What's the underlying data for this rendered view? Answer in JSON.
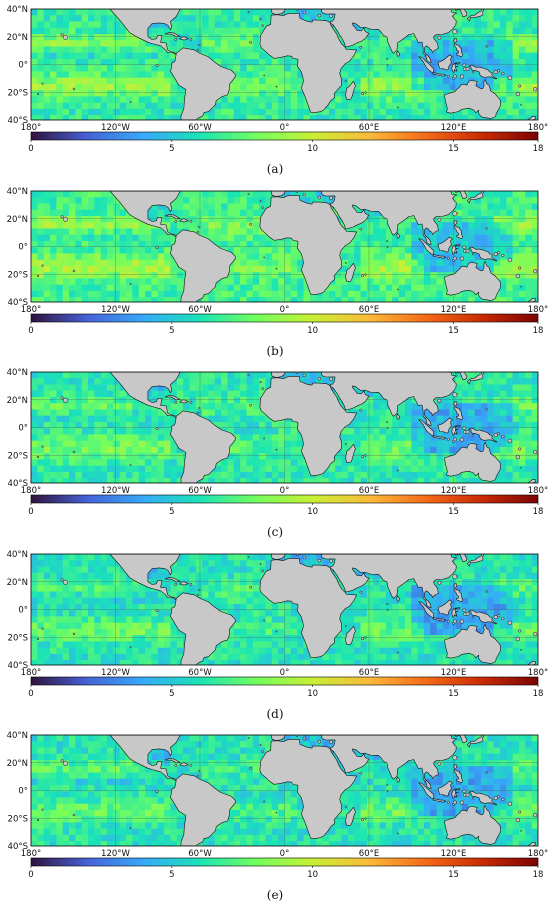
{
  "figure": {
    "panels": [
      {
        "label": "(a)"
      },
      {
        "label": "(b)"
      },
      {
        "label": "(c)"
      },
      {
        "label": "(d)"
      },
      {
        "label": "(e)"
      }
    ]
  },
  "map": {
    "lat_ticks": [
      "40°N",
      "20°N",
      "0°",
      "20°S",
      "40°S"
    ],
    "lon_ticks": [
      "180°",
      "120°W",
      "60°W",
      "0°",
      "60°E",
      "120°E",
      "180°"
    ],
    "lat_range": [
      -40,
      40
    ],
    "lon_range": [
      -180,
      180
    ],
    "land_color": "#c8c8c8",
    "gridlines": true
  },
  "colorbar": {
    "ticks": [
      "0",
      "5",
      "10",
      "15",
      "18"
    ],
    "range": [
      0,
      18
    ],
    "colormap": "turbo",
    "colors": [
      "#30123b",
      "#4662d7",
      "#36aaf9",
      "#1ae4b6",
      "#72fe5e",
      "#c8ef34",
      "#faba39",
      "#f66b19",
      "#ca2a04",
      "#7a0403"
    ]
  },
  "chart_data": [
    {
      "type": "heatmap",
      "panel": "(a)",
      "ocean_level": 6.4,
      "colorbar_range": [
        0,
        18
      ]
    },
    {
      "type": "heatmap",
      "panel": "(b)",
      "ocean_level": 6.8,
      "colorbar_range": [
        0,
        18
      ]
    },
    {
      "type": "heatmap",
      "panel": "(c)",
      "ocean_level": 6.2,
      "colorbar_range": [
        0,
        18
      ]
    },
    {
      "type": "heatmap",
      "panel": "(d)",
      "ocean_level": 6.0,
      "colorbar_range": [
        0,
        18
      ]
    },
    {
      "type": "heatmap",
      "panel": "(e)",
      "ocean_level": 6.0,
      "colorbar_range": [
        0,
        18
      ]
    }
  ]
}
